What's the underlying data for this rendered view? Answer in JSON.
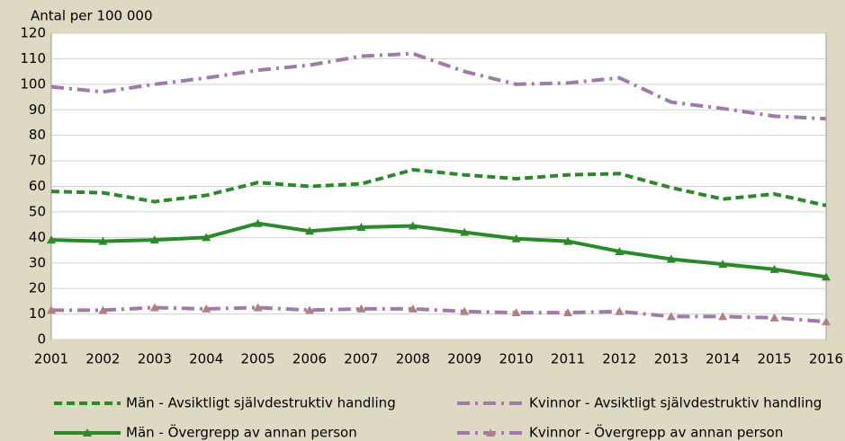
{
  "chart_data": {
    "type": "line",
    "y_axis_label": "Antal per 100 000",
    "categories": [
      "2001",
      "2002",
      "2003",
      "2004",
      "2005",
      "2006",
      "2007",
      "2008",
      "2009",
      "2010",
      "2011",
      "2012",
      "2013",
      "2014",
      "2015",
      "2016"
    ],
    "ylim": [
      0,
      120
    ],
    "yticks": [
      0,
      10,
      20,
      30,
      40,
      50,
      60,
      70,
      80,
      90,
      100,
      110,
      120
    ],
    "grid": true,
    "series": [
      {
        "name": "Män - Avsiktligt självdestruktiv handling",
        "color": "#2a8a2a",
        "dash": "dashed",
        "marker": "none",
        "values": [
          58,
          57.5,
          54,
          56.5,
          61.5,
          60,
          61,
          66.5,
          64.5,
          63,
          64.5,
          65,
          59.5,
          55,
          57,
          52.5
        ]
      },
      {
        "name": "Kvinnor - Avsiktligt självdestruktiv handling",
        "color": "#a07aab",
        "dash": "dashdot",
        "marker": "none",
        "values": [
          99,
          97,
          100,
          102.5,
          105.5,
          107.5,
          111,
          112,
          105,
          100,
          100.5,
          102.5,
          93,
          90.5,
          87.5,
          86.5
        ]
      },
      {
        "name": "Män - Övergrepp av annan person",
        "color": "#2a8a2a",
        "dash": "solid",
        "marker": "triangle",
        "marker_color": "#2a8a2a",
        "values": [
          39,
          38.5,
          39,
          40,
          45.5,
          42.5,
          44,
          44.5,
          42,
          39.5,
          38.5,
          34.5,
          31.5,
          29.5,
          27.5,
          24.5
        ]
      },
      {
        "name": "Kvinnor - Övergrepp av annan person",
        "color": "#a07aab",
        "dash": "dashdot",
        "marker": "triangle",
        "marker_color": "#b08080",
        "values": [
          11.5,
          11.5,
          12.5,
          12,
          12.5,
          11.5,
          12,
          12,
          11,
          10.5,
          10.5,
          11,
          9,
          9,
          8.5,
          7
        ]
      }
    ]
  }
}
